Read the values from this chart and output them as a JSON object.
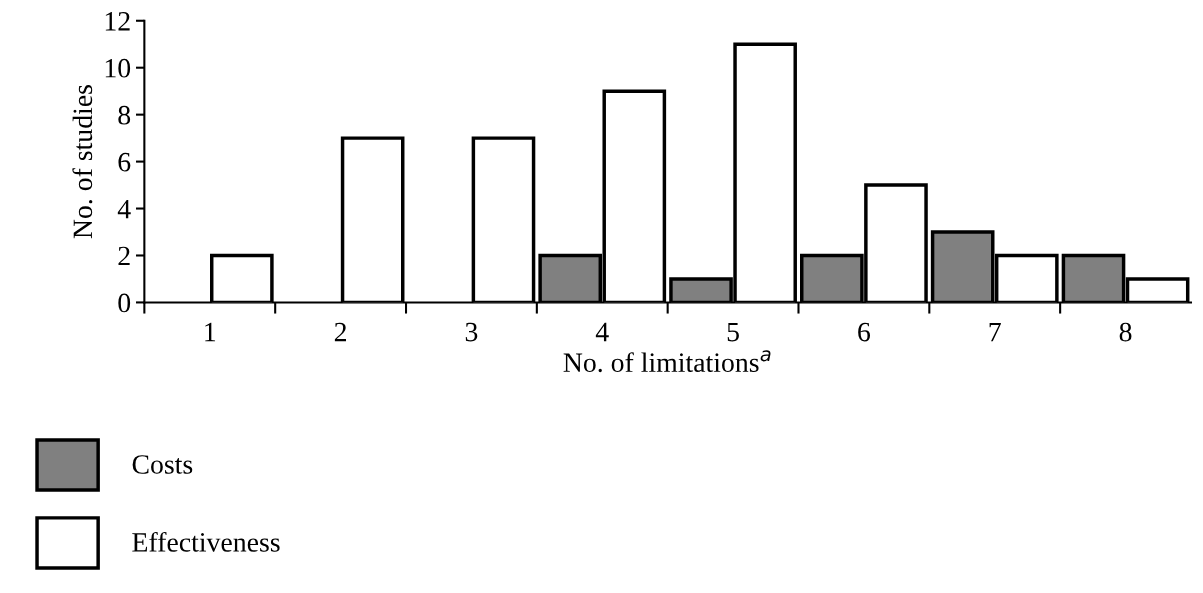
{
  "chart_data": {
    "type": "bar",
    "xlabel": "No. of limitations$^{a}$",
    "ylabel": "No. of studies",
    "categories": [
      "1",
      "2",
      "3",
      "4",
      "5",
      "6",
      "7",
      "8"
    ],
    "series": [
      {
        "name": "Costs",
        "color": "#808080",
        "values": [
          null,
          null,
          null,
          2,
          1,
          2,
          3,
          2
        ]
      },
      {
        "name": "Effectiveness",
        "color": "#ffffff",
        "values": [
          2,
          7,
          7,
          9,
          11,
          5,
          2,
          1
        ]
      }
    ],
    "ylim": [
      0,
      12
    ],
    "yticks": [
      0,
      2,
      4,
      6,
      8,
      10,
      12
    ],
    "grid": false,
    "legend": "bottom left"
  }
}
